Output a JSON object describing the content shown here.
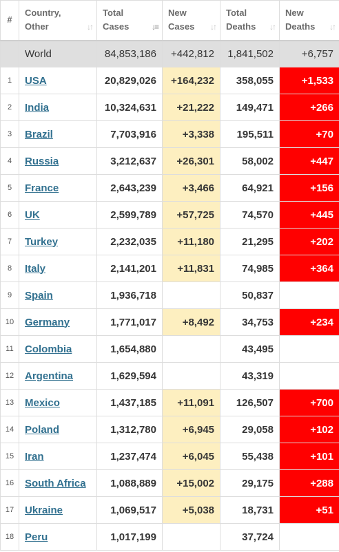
{
  "headers": {
    "rank": "#",
    "country": [
      "Country,",
      "Other"
    ],
    "total_cases": [
      "Total",
      "Cases"
    ],
    "new_cases": [
      "New",
      "Cases"
    ],
    "total_deaths": [
      "Total",
      "Deaths"
    ],
    "new_deaths": [
      "New",
      "Deaths"
    ]
  },
  "world": {
    "country": "World",
    "total_cases": "84,853,186",
    "new_cases": "+442,812",
    "total_deaths": "1,841,502",
    "new_deaths": "+6,757"
  },
  "rows": [
    {
      "rank": "1",
      "country": "USA",
      "total_cases": "20,829,026",
      "new_cases": "+164,232",
      "total_deaths": "358,055",
      "new_deaths": "+1,533"
    },
    {
      "rank": "2",
      "country": "India",
      "total_cases": "10,324,631",
      "new_cases": "+21,222",
      "total_deaths": "149,471",
      "new_deaths": "+266"
    },
    {
      "rank": "3",
      "country": "Brazil",
      "total_cases": "7,703,916",
      "new_cases": "+3,338",
      "total_deaths": "195,511",
      "new_deaths": "+70"
    },
    {
      "rank": "4",
      "country": "Russia",
      "total_cases": "3,212,637",
      "new_cases": "+26,301",
      "total_deaths": "58,002",
      "new_deaths": "+447"
    },
    {
      "rank": "5",
      "country": "France",
      "total_cases": "2,643,239",
      "new_cases": "+3,466",
      "total_deaths": "64,921",
      "new_deaths": "+156"
    },
    {
      "rank": "6",
      "country": "UK",
      "total_cases": "2,599,789",
      "new_cases": "+57,725",
      "total_deaths": "74,570",
      "new_deaths": "+445"
    },
    {
      "rank": "7",
      "country": "Turkey",
      "total_cases": "2,232,035",
      "new_cases": "+11,180",
      "total_deaths": "21,295",
      "new_deaths": "+202"
    },
    {
      "rank": "8",
      "country": "Italy",
      "total_cases": "2,141,201",
      "new_cases": "+11,831",
      "total_deaths": "74,985",
      "new_deaths": "+364"
    },
    {
      "rank": "9",
      "country": "Spain",
      "total_cases": "1,936,718",
      "new_cases": "",
      "total_deaths": "50,837",
      "new_deaths": ""
    },
    {
      "rank": "10",
      "country": "Germany",
      "total_cases": "1,771,017",
      "new_cases": "+8,492",
      "total_deaths": "34,753",
      "new_deaths": "+234"
    },
    {
      "rank": "11",
      "country": "Colombia",
      "total_cases": "1,654,880",
      "new_cases": "",
      "total_deaths": "43,495",
      "new_deaths": ""
    },
    {
      "rank": "12",
      "country": "Argentina",
      "total_cases": "1,629,594",
      "new_cases": "",
      "total_deaths": "43,319",
      "new_deaths": ""
    },
    {
      "rank": "13",
      "country": "Mexico",
      "total_cases": "1,437,185",
      "new_cases": "+11,091",
      "total_deaths": "126,507",
      "new_deaths": "+700"
    },
    {
      "rank": "14",
      "country": "Poland",
      "total_cases": "1,312,780",
      "new_cases": "+6,945",
      "total_deaths": "29,058",
      "new_deaths": "+102"
    },
    {
      "rank": "15",
      "country": "Iran",
      "total_cases": "1,237,474",
      "new_cases": "+6,045",
      "total_deaths": "55,438",
      "new_deaths": "+101"
    },
    {
      "rank": "16",
      "country": "South Africa",
      "total_cases": "1,088,889",
      "new_cases": "+15,002",
      "total_deaths": "29,175",
      "new_deaths": "+288"
    },
    {
      "rank": "17",
      "country": "Ukraine",
      "total_cases": "1,069,517",
      "new_cases": "+5,038",
      "total_deaths": "18,731",
      "new_deaths": "+51"
    },
    {
      "rank": "18",
      "country": "Peru",
      "total_cases": "1,017,199",
      "new_cases": "",
      "total_deaths": "37,724",
      "new_deaths": ""
    }
  ],
  "colors": {
    "new_cases_highlight": "#fdefc0",
    "new_deaths_highlight": "#ff0000",
    "country_link": "#31708f",
    "world_row_bg": "#dfdfdf"
  },
  "icons": {
    "sort": "sort-arrows-icon",
    "sort_active": "sort-descending-icon"
  }
}
